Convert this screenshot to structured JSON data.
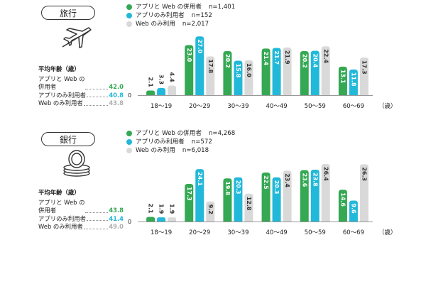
{
  "colors": {
    "web_and_app": "#34a853",
    "app_only": "#22b8d9",
    "web_only": "#d9d9d9",
    "avg_web_only": "#b0b0b0"
  },
  "legend_labels": [
    "アプリと Web の併用者",
    "アプリのみ利用者",
    "Web のみ利用"
  ],
  "age_unit": "（歳）",
  "zero_label": "0",
  "chart_data": [
    {
      "type": "bar",
      "title": "旅行",
      "icon": "airplane-icon",
      "categories": [
        "18～19",
        "20～29",
        "30～39",
        "40～49",
        "50～59",
        "60～69"
      ],
      "ylim": [
        0,
        30
      ],
      "series": [
        {
          "name": "アプリと Web の併用者",
          "n": "n=1,401",
          "values": [
            2.1,
            23.0,
            20.2,
            21.4,
            20.2,
            13.1
          ]
        },
        {
          "name": "アプリのみ利用者",
          "n": "n=152",
          "values": [
            3.3,
            27.0,
            15.8,
            21.7,
            20.4,
            11.8
          ]
        },
        {
          "name": "Web のみ利用",
          "n": "n=2,017",
          "values": [
            4.4,
            17.8,
            16.0,
            21.9,
            22.4,
            17.3
          ]
        }
      ],
      "data_labels": [
        [
          "2.1",
          "23.0",
          "20.2",
          "21.4",
          "20.2",
          "13.1"
        ],
        [
          "3.3",
          "27.0",
          "15.8",
          "21.7",
          "20.4",
          "11.8"
        ],
        [
          "4.4",
          "17.8",
          "16.0",
          "21.9",
          "22.4",
          "17.3"
        ]
      ],
      "average_age": {
        "title": "平均年齢（歳）",
        "rows": [
          {
            "label": "アプリと Web の\n併用者",
            "value": "42.0"
          },
          {
            "label": "アプリのみ利用者",
            "value": "40.8"
          },
          {
            "label": "Web のみ利用者",
            "value": "43.8"
          }
        ]
      }
    },
    {
      "type": "bar",
      "title": "銀行",
      "icon": "coins-icon",
      "categories": [
        "18～19",
        "20～29",
        "30～39",
        "40～49",
        "50～59",
        "60～69"
      ],
      "ylim": [
        0,
        30
      ],
      "series": [
        {
          "name": "アプリと Web の併用者",
          "n": "n=4,268",
          "values": [
            2.1,
            17.3,
            19.8,
            22.5,
            23.6,
            14.6
          ]
        },
        {
          "name": "アプリのみ利用者",
          "n": "n=572",
          "values": [
            1.9,
            24.1,
            20.3,
            20.3,
            23.8,
            9.6
          ]
        },
        {
          "name": "Web のみ利用",
          "n": "n=6,018",
          "values": [
            1.9,
            9.2,
            12.8,
            23.4,
            26.4,
            26.3
          ]
        }
      ],
      "data_labels": [
        [
          "2.1",
          "17.3",
          "19.8",
          "22.5",
          "23.6",
          "14.6"
        ],
        [
          "1.9",
          "24.1",
          "20.3",
          "20.3",
          "23.8",
          "9.6"
        ],
        [
          "1.9",
          "9.2",
          "12.8",
          "23.4",
          "26.4",
          "26.3"
        ]
      ],
      "average_age": {
        "title": "平均年齢（歳）",
        "rows": [
          {
            "label": "アプリと Web の\n併用者",
            "value": "43.8"
          },
          {
            "label": "アプリのみ利用者",
            "value": "41.4"
          },
          {
            "label": "Web のみ利用者",
            "value": "49.0"
          }
        ]
      }
    }
  ]
}
